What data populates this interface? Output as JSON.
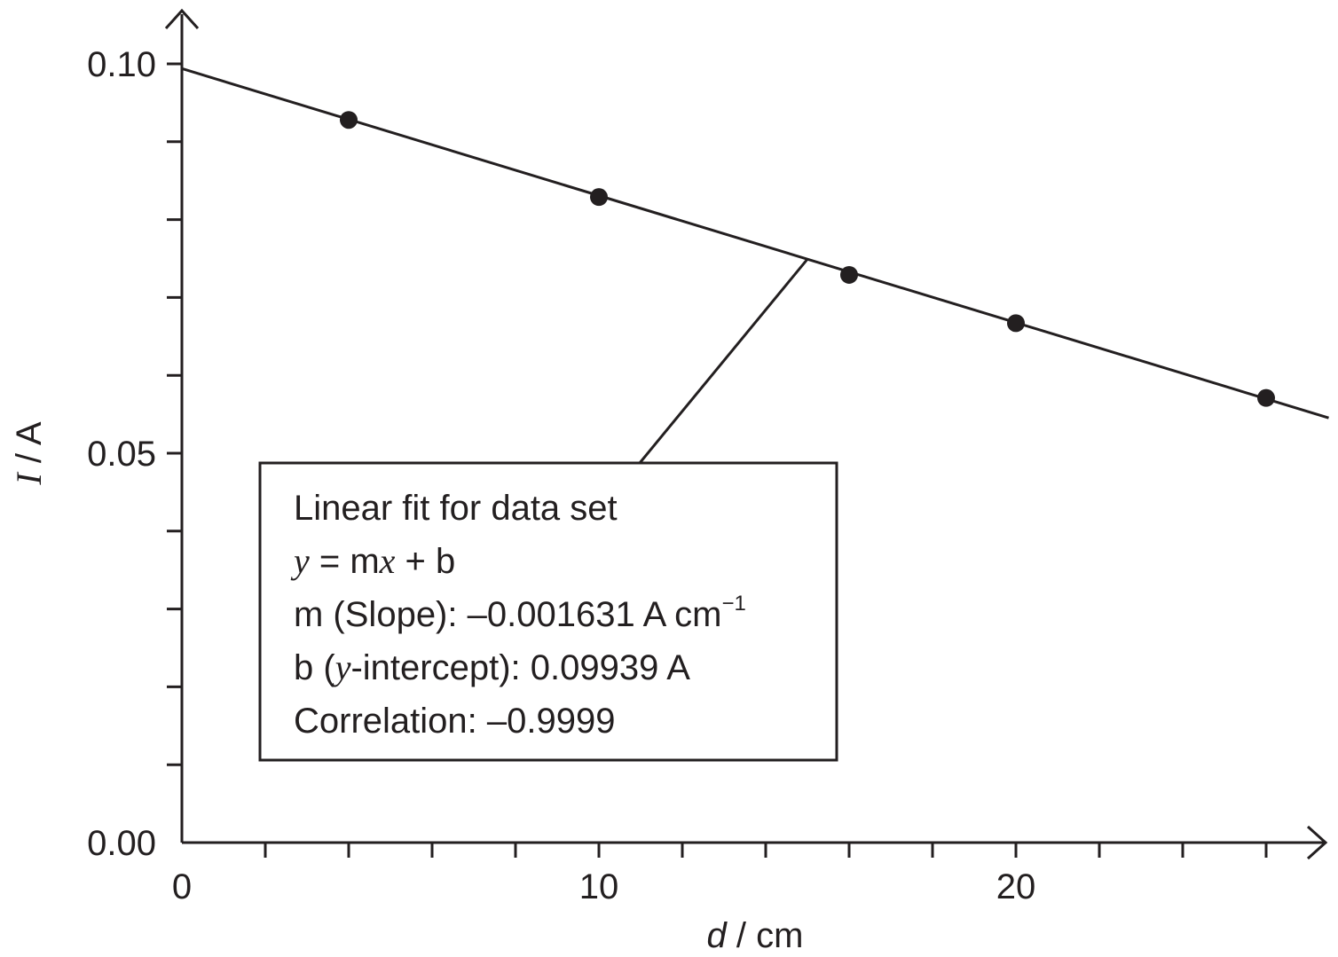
{
  "chart_data": {
    "type": "scatter",
    "xlabel": {
      "var": "d",
      "unit": " / cm"
    },
    "ylabel": {
      "var": "I",
      "unit": " / A"
    },
    "xlim": [
      0,
      27.5
    ],
    "ylim": [
      0,
      0.1
    ],
    "x_ticks": [
      0,
      10,
      20
    ],
    "x_tick_labels": [
      "0",
      "10",
      "20"
    ],
    "x_minor_step": 2,
    "y_ticks": [
      0,
      0.05,
      0.1
    ],
    "y_tick_labels": [
      "0.00",
      "0.05",
      "0.10"
    ],
    "y_minor_step": 0.01,
    "grid": false,
    "series": [
      {
        "points": [
          {
            "x": 4.0,
            "y": 0.0928
          },
          {
            "x": 10.0,
            "y": 0.0829
          },
          {
            "x": 16.0,
            "y": 0.0729
          },
          {
            "x": 20.0,
            "y": 0.0667
          },
          {
            "x": 26.0,
            "y": 0.0571
          }
        ]
      }
    ],
    "fit_line": {
      "slope": -0.001631,
      "intercept": 0.09939,
      "x_range": [
        0,
        27.5
      ]
    },
    "annotation": {
      "line1": "Linear fit for data set",
      "line2": {
        "y": "y",
        "eq": " = m",
        "x": "x",
        "rest": " + b"
      },
      "line3": {
        "text": "m (Slope): –0.001631 A cm",
        "sup": "−1"
      },
      "line4": {
        "pre": "b (",
        "y": "y",
        "post": "-intercept): 0.09939 A"
      },
      "line5": "Correlation: –0.9999"
    }
  }
}
